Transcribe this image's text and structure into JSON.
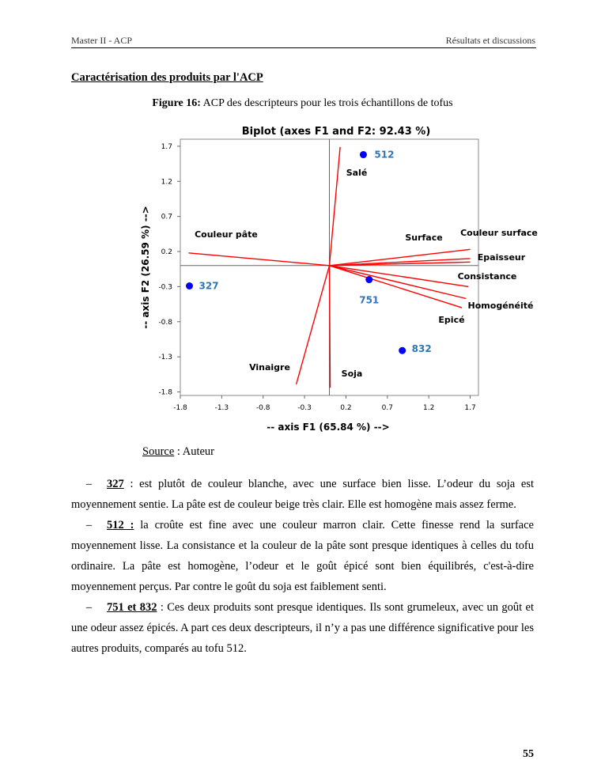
{
  "header": {
    "left": "Master II - ACP",
    "right": "Résultats  et discussions"
  },
  "section_title": "Caractérisation des produits par l'ACP",
  "figure": {
    "label": "Figure 16:",
    "caption": " ACP des descripteurs pour les trois échantillons de tofus"
  },
  "chart_data": {
    "type": "biplot",
    "title": "Biplot (axes F1 and F2: 92.43 %)",
    "xlabel": "-- axis F1 (65.84 %) -->",
    "ylabel": "-- axis F2 (26.59 %) -->",
    "xlim": [
      -1.8,
      1.8
    ],
    "ylim": [
      -1.85,
      1.8
    ],
    "xticks": [
      -1.8,
      -1.3,
      -0.8,
      -0.3,
      0.2,
      0.7,
      1.2,
      1.7
    ],
    "yticks": [
      -1.8,
      -1.3,
      -0.8,
      -0.3,
      0.2,
      0.7,
      1.2,
      1.7
    ],
    "points": {
      "color": "#0000ff",
      "label_color": "#2e75b6",
      "labels": [
        "512",
        "327",
        "751",
        "832"
      ],
      "x": [
        0.41,
        -1.69,
        0.48,
        0.88
      ],
      "y": [
        1.58,
        -0.29,
        -0.2,
        -1.21
      ]
    },
    "vectors": {
      "color": "#ff0000",
      "labels": [
        "Salé",
        "Couleur pâte",
        "Surface",
        "Couleur surface",
        "Epaisseur",
        "Consistance",
        "Homogénéité",
        "Epicé",
        "Vinaigre",
        "Soja"
      ],
      "x": [
        0.13,
        -1.7,
        1.7,
        1.7,
        1.7,
        1.68,
        1.65,
        1.6,
        -0.4,
        0.01
      ],
      "y": [
        1.69,
        0.18,
        0.1,
        0.23,
        0.05,
        -0.3,
        -0.47,
        -0.6,
        -1.69,
        -1.74
      ]
    }
  },
  "source": {
    "label": "Source",
    "text": " : Auteur"
  },
  "items": [
    {
      "marker": "–",
      "lead": "327",
      "text": " : est plutôt de couleur blanche, avec une surface bien lisse. L’odeur du soja est moyennement sentie. La pâte est de couleur beige très clair. Elle est homogène mais assez ferme."
    },
    {
      "marker": "–",
      "lead": "512 :",
      "text": " la croûte est fine avec une couleur marron clair. Cette finesse rend la surface moyennement lisse. La consistance et la couleur de la pâte sont presque identiques à celles du tofu ordinaire. La pâte est homogène, l’odeur et le goût épicé sont bien équilibrés, c'est-à-dire moyennement perçus. Par contre le goût du soja est faiblement senti."
    },
    {
      "marker": "–",
      "lead": "751 et 832",
      "text": " : Ces deux produits sont presque identiques. Ils sont grumeleux, avec un goût et une odeur assez épicés. A part ces deux descripteurs, il n’y a pas une différence significative pour les autres produits, comparés au tofu 512."
    }
  ],
  "page_number": "55"
}
